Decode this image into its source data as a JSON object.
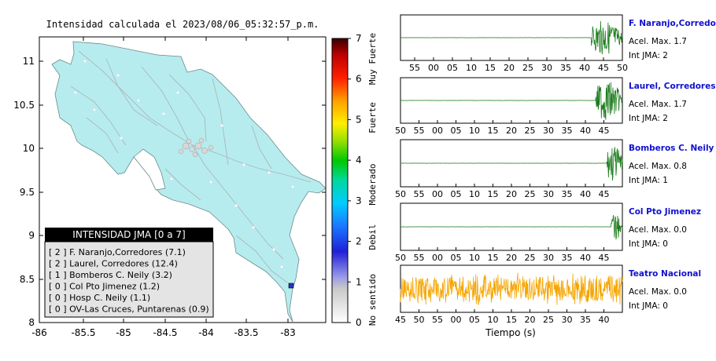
{
  "map": {
    "title": "Intensidad calculada el 2023/08/06_05:32:57_p.m.",
    "x_ticks": [
      "-86",
      "-85.5",
      "-85",
      "-84.5",
      "-84",
      "-83.5",
      "-83"
    ],
    "y_ticks": [
      "11",
      "10.5",
      "10",
      "9.5",
      "9",
      "8.5",
      "8"
    ],
    "land_color": "#b7ecef",
    "legend": {
      "title": "INTENSIDAD JMA [0 a 7]",
      "entries": [
        "[ 2 ]  F. Naranjo,Corredores (7.1)",
        "[ 2 ]  Laurel, Corredores (12.4)",
        "[ 1 ]  Bomberos C. Neily (3.2)",
        "[ 0 ]  Col Pto Jimenez (1.2)",
        "[ 0 ]  Hosp C. Neily (1.1)",
        "[ 0 ]  OV-Las Cruces, Puntarenas (0.9)"
      ]
    }
  },
  "colorbar": {
    "ticks": [
      "0",
      "1",
      "2",
      "3",
      "4",
      "5",
      "6",
      "7"
    ],
    "labels": [
      "No sentido",
      "Debil",
      "Moderado",
      "Fuerte",
      "Muy Fuerte"
    ]
  },
  "traces": [
    {
      "name": "F. Naranjo,Corredores",
      "accel": "Acel. Max. 1.7",
      "jma": "Int JMA: 2",
      "color": "#1a7a1a",
      "ticks": [
        "55",
        "00",
        "05",
        "10",
        "15",
        "20",
        "25",
        "30",
        "35",
        "40",
        "45",
        "50"
      ]
    },
    {
      "name": "Laurel, Corredores",
      "accel": "Acel. Max. 1.7",
      "jma": "Int JMA: 2",
      "color": "#1a7a1a",
      "ticks": [
        "50",
        "55",
        "00",
        "05",
        "10",
        "15",
        "20",
        "25",
        "30",
        "35",
        "40",
        "45"
      ]
    },
    {
      "name": "Bomberos C. Neily",
      "accel": "Acel. Max. 0.8",
      "jma": "Int JMA: 1",
      "color": "#1a7a1a",
      "ticks": [
        "50",
        "55",
        "00",
        "05",
        "10",
        "15",
        "20",
        "25",
        "30",
        "35",
        "40",
        "45"
      ]
    },
    {
      "name": "Col Pto Jimenez",
      "accel": "Acel. Max. 0.0",
      "jma": "Int JMA: 0",
      "color": "#1a7a1a",
      "ticks": [
        "50",
        "55",
        "00",
        "05",
        "10",
        "15",
        "20",
        "25",
        "30",
        "35",
        "40",
        "45"
      ]
    },
    {
      "name": "Teatro Nacional",
      "accel": "Acel. Max. 0.0",
      "jma": "Int JMA: 0",
      "color": "#f5a500",
      "ticks": [
        "45",
        "50",
        "55",
        "00",
        "05",
        "10",
        "15",
        "20",
        "25",
        "30",
        "35",
        "40"
      ]
    }
  ],
  "xlabel": "Tiempo (s)",
  "colors": {
    "station_label": "#1010d0"
  }
}
